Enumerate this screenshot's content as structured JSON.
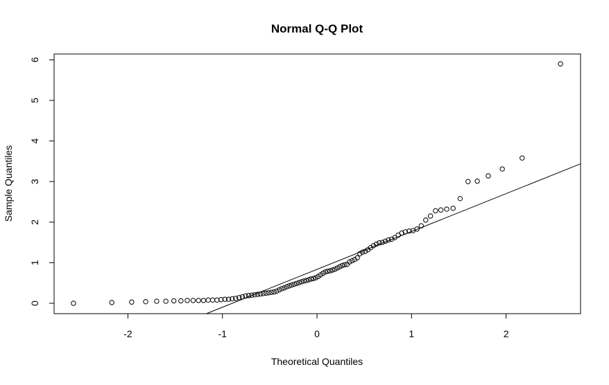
{
  "chart_data": {
    "type": "scatter",
    "title": "Normal Q-Q Plot",
    "xlabel": "Theoretical Quantiles",
    "ylabel": "Sample Quantiles",
    "xlim": [
      -2.78,
      2.78
    ],
    "ylim": [
      -0.25,
      6.1
    ],
    "xticks": [
      -2,
      -1,
      0,
      1,
      2
    ],
    "yticks": [
      0,
      1,
      2,
      3,
      4,
      5,
      6
    ],
    "grid": false,
    "legend": "none",
    "marker": "open-circle",
    "reference_line": {
      "intercept": 0.836,
      "slope": 0.933
    },
    "sample": [
      0.0,
      0.02,
      0.03,
      0.04,
      0.05,
      0.05,
      0.06,
      0.06,
      0.07,
      0.07,
      0.07,
      0.07,
      0.08,
      0.08,
      0.08,
      0.09,
      0.1,
      0.1,
      0.11,
      0.12,
      0.14,
      0.16,
      0.18,
      0.19,
      0.2,
      0.21,
      0.22,
      0.23,
      0.24,
      0.25,
      0.26,
      0.27,
      0.28,
      0.3,
      0.33,
      0.36,
      0.38,
      0.41,
      0.43,
      0.45,
      0.47,
      0.49,
      0.51,
      0.53,
      0.55,
      0.56,
      0.58,
      0.6,
      0.61,
      0.63,
      0.66,
      0.7,
      0.74,
      0.77,
      0.79,
      0.8,
      0.82,
      0.84,
      0.87,
      0.9,
      0.93,
      0.95,
      0.96,
      1.02,
      1.05,
      1.08,
      1.12,
      1.22,
      1.26,
      1.28,
      1.32,
      1.37,
      1.42,
      1.46,
      1.49,
      1.5,
      1.53,
      1.56,
      1.58,
      1.62,
      1.68,
      1.73,
      1.76,
      1.78,
      1.79,
      1.83,
      1.91,
      2.05,
      2.15,
      2.28,
      2.3,
      2.32,
      2.34,
      2.58,
      3.0,
      3.01,
      3.14,
      3.31,
      3.58,
      5.9
    ]
  }
}
